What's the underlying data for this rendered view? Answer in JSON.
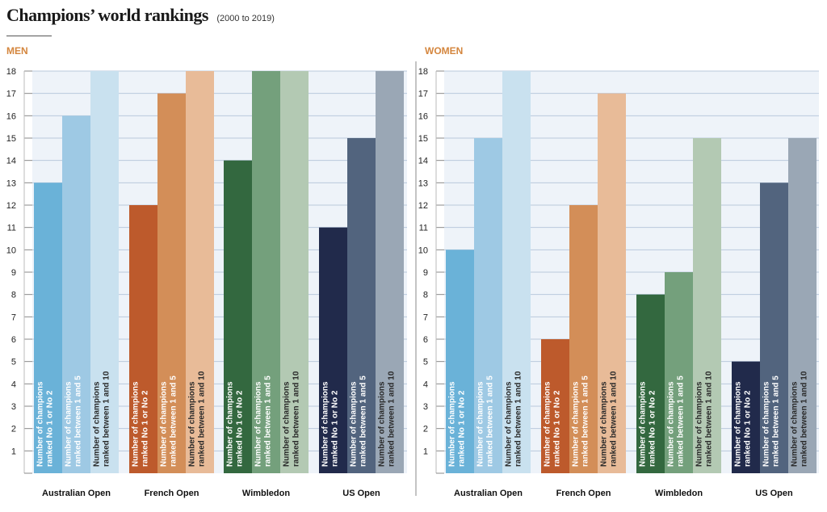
{
  "header": {
    "title": "Champions’ world rankings",
    "subtitle": "(2000 to 2019)"
  },
  "colors": {
    "panel_label": "#d4863e",
    "panel_bg": "#eef3f9",
    "grid": "#b9c8dc",
    "divider": "#888888",
    "Australian Open": [
      "#6ab2d8",
      "#9ec9e4",
      "#c9e1ef"
    ],
    "French Open": [
      "#bd5a2c",
      "#d38e58",
      "#e8bb98"
    ],
    "Wimbledon": [
      "#33683f",
      "#74a07c",
      "#b3c9b3"
    ],
    "US Open": [
      "#212a4b",
      "#52647e",
      "#9aa7b5"
    ]
  },
  "chart_data": [
    {
      "type": "bar",
      "panel": "MEN",
      "categories": [
        "Australian Open",
        "French Open",
        "Wimbledon",
        "US Open"
      ],
      "series": [
        {
          "name": "Number of champions ranked No 1 or No 2",
          "values": [
            13,
            12,
            14,
            11
          ]
        },
        {
          "name": "Number of champions ranked between 1 and 5",
          "values": [
            16,
            17,
            18,
            15
          ]
        },
        {
          "name": "Number of champions ranked between 1 and 10",
          "values": [
            18,
            18,
            18,
            18
          ]
        }
      ],
      "yticks": [
        1,
        2,
        3,
        4,
        5,
        6,
        7,
        8,
        9,
        10,
        11,
        12,
        13,
        14,
        15,
        16,
        17,
        18
      ],
      "ylim": [
        0,
        18
      ],
      "grid": true
    },
    {
      "type": "bar",
      "panel": "WOMEN",
      "categories": [
        "Australian Open",
        "French Open",
        "Wimbledon",
        "US Open"
      ],
      "series": [
        {
          "name": "Number of champions ranked No 1 or No 2",
          "values": [
            10,
            6,
            8,
            5
          ]
        },
        {
          "name": "Number of champions ranked between 1 and 5",
          "values": [
            15,
            12,
            9,
            13
          ]
        },
        {
          "name": "Number of champions ranked between 1 and 10",
          "values": [
            18,
            17,
            15,
            15
          ]
        }
      ],
      "yticks": [
        1,
        2,
        3,
        4,
        5,
        6,
        7,
        8,
        9,
        10,
        11,
        12,
        13,
        14,
        15,
        16,
        17,
        18
      ],
      "ylim": [
        0,
        18
      ],
      "grid": true
    }
  ]
}
